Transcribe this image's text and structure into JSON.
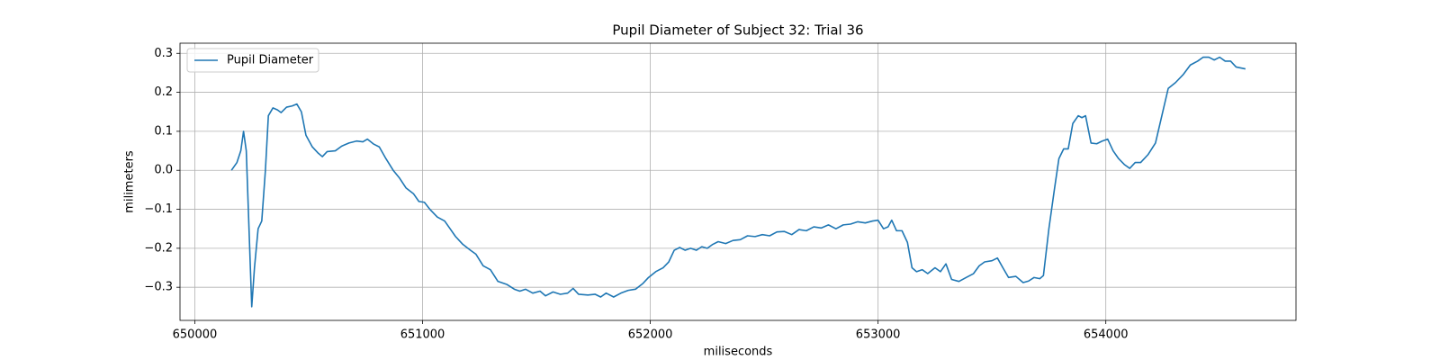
{
  "chart_data": {
    "type": "line",
    "title": "Pupil Diameter of Subject 32: Trial 36",
    "x_label": "miliseconds",
    "y_label": "milimeters",
    "x": [
      650161,
      650185,
      650202,
      650214,
      650226,
      650238,
      650250,
      650262,
      650278,
      650294,
      650310,
      650323,
      650343,
      650363,
      650379,
      650403,
      650427,
      650448,
      650468,
      650488,
      650516,
      650540,
      650560,
      650581,
      650617,
      650645,
      650677,
      650710,
      650738,
      650758,
      650786,
      650810,
      650839,
      650871,
      650899,
      650927,
      650960,
      650984,
      651008,
      651032,
      651065,
      651097,
      651121,
      651145,
      651177,
      651210,
      651234,
      651266,
      651298,
      651331,
      651371,
      651403,
      651427,
      651452,
      651484,
      651516,
      651540,
      651573,
      651605,
      651637,
      651661,
      651685,
      651726,
      651758,
      651782,
      651806,
      651839,
      651871,
      651903,
      651935,
      651968,
      651992,
      652024,
      652056,
      652081,
      652105,
      652129,
      652153,
      652177,
      652202,
      652226,
      652250,
      652274,
      652298,
      652331,
      652363,
      652395,
      652427,
      652460,
      652492,
      652524,
      652556,
      652589,
      652621,
      652653,
      652685,
      652718,
      652750,
      652782,
      652815,
      652847,
      652879,
      652911,
      652944,
      652976,
      653000,
      653024,
      653044,
      653060,
      653081,
      653105,
      653129,
      653149,
      653169,
      653194,
      653218,
      653250,
      653274,
      653298,
      653323,
      653355,
      653387,
      653419,
      653444,
      653468,
      653500,
      653524,
      653548,
      653573,
      653605,
      653637,
      653661,
      653685,
      653710,
      653726,
      653750,
      653774,
      653794,
      653815,
      653835,
      653855,
      653879,
      653895,
      653911,
      653935,
      653960,
      653984,
      654008,
      654032,
      654056,
      654081,
      654105,
      654129,
      654153,
      654185,
      654218,
      654250,
      654274,
      654306,
      654339,
      654371,
      654403,
      654427,
      654452,
      654476,
      654500,
      654524,
      654548,
      654572,
      654613
    ],
    "series": [
      {
        "name": "Pupil Diameter",
        "color": "#1f77b4",
        "values": [
          0.0,
          0.02,
          0.05,
          0.1,
          0.05,
          -0.15,
          -0.35,
          -0.25,
          -0.15,
          -0.13,
          0.0,
          0.14,
          0.16,
          0.155,
          0.148,
          0.162,
          0.165,
          0.17,
          0.15,
          0.09,
          0.06,
          0.045,
          0.035,
          0.048,
          0.05,
          0.062,
          0.07,
          0.075,
          0.073,
          0.08,
          0.067,
          0.06,
          0.03,
          0.0,
          -0.02,
          -0.045,
          -0.06,
          -0.08,
          -0.082,
          -0.1,
          -0.12,
          -0.13,
          -0.15,
          -0.17,
          -0.19,
          -0.205,
          -0.215,
          -0.245,
          -0.255,
          -0.285,
          -0.293,
          -0.305,
          -0.31,
          -0.305,
          -0.315,
          -0.31,
          -0.322,
          -0.312,
          -0.318,
          -0.315,
          -0.303,
          -0.318,
          -0.32,
          -0.318,
          -0.325,
          -0.315,
          -0.325,
          -0.315,
          -0.308,
          -0.305,
          -0.29,
          -0.275,
          -0.26,
          -0.25,
          -0.235,
          -0.205,
          -0.198,
          -0.205,
          -0.2,
          -0.205,
          -0.196,
          -0.2,
          -0.19,
          -0.183,
          -0.188,
          -0.18,
          -0.178,
          -0.168,
          -0.17,
          -0.165,
          -0.168,
          -0.158,
          -0.157,
          -0.165,
          -0.152,
          -0.155,
          -0.145,
          -0.148,
          -0.14,
          -0.15,
          -0.14,
          -0.138,
          -0.132,
          -0.135,
          -0.13,
          -0.128,
          -0.15,
          -0.145,
          -0.128,
          -0.155,
          -0.155,
          -0.185,
          -0.25,
          -0.26,
          -0.255,
          -0.265,
          -0.25,
          -0.26,
          -0.24,
          -0.28,
          -0.285,
          -0.275,
          -0.265,
          -0.245,
          -0.235,
          -0.232,
          -0.225,
          -0.25,
          -0.275,
          -0.272,
          -0.288,
          -0.284,
          -0.275,
          -0.278,
          -0.27,
          -0.15,
          -0.05,
          0.03,
          0.055,
          0.055,
          0.12,
          0.14,
          0.135,
          0.14,
          0.07,
          0.068,
          0.075,
          0.08,
          0.05,
          0.03,
          0.015,
          0.005,
          0.02,
          0.02,
          0.04,
          0.07,
          0.15,
          0.21,
          0.225,
          0.245,
          0.27,
          0.28,
          0.29,
          0.29,
          0.283,
          0.29,
          0.28,
          0.28,
          0.265,
          0.26
        ]
      }
    ],
    "xlim": [
      649935,
      654835
    ],
    "ylim": [
      -0.385,
      0.326
    ],
    "xticks": [
      650000,
      651000,
      652000,
      653000,
      654000
    ],
    "yticks": [
      {
        "value": -0.3,
        "label": "−0.3"
      },
      {
        "value": -0.2,
        "label": "−0.2"
      },
      {
        "value": -0.1,
        "label": "−0.1"
      },
      {
        "value": 0,
        "label": "0.0"
      },
      0.1,
      0.2,
      0.3
    ],
    "grid": true,
    "legend": "upper left"
  }
}
